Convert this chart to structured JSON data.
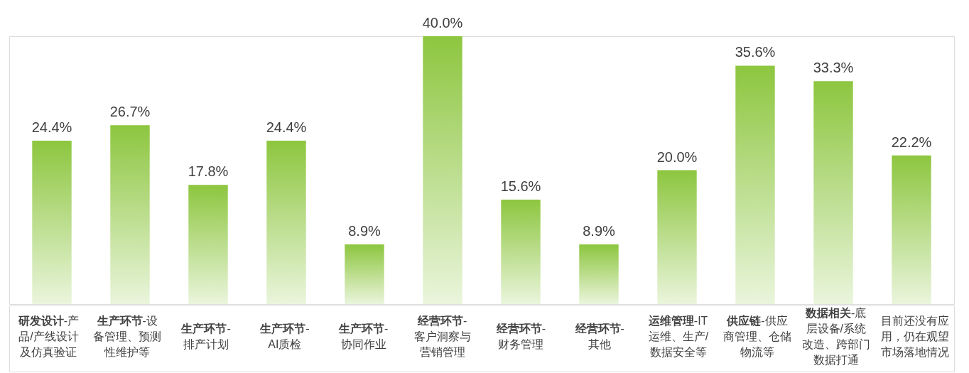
{
  "chart_data": {
    "type": "bar",
    "categories": [
      "研发设计-产品/产线设计及仿真验证",
      "生产环节-设备管理、预测性维护等",
      "生产环节-排产计划",
      "生产环节-AI质检",
      "生产环节-协同作业",
      "经营环节-客户洞察与营销管理",
      "经营环节-财务管理",
      "经营环节-其他",
      "运维管理-IT运维、生产/数据安全等",
      "供应链-供应商管理、仓储物流等",
      "数据相关-底层设备/系统改造、跨部门数据打通",
      "目前还没有应用，仍在观望市场落地情况"
    ],
    "values": [
      24.4,
      26.7,
      17.8,
      24.4,
      8.9,
      40.0,
      15.6,
      8.9,
      20.0,
      35.6,
      33.3,
      22.2
    ],
    "value_labels": [
      "24.4%",
      "26.7%",
      "17.8%",
      "24.4%",
      "8.9%",
      "40.0%",
      "15.6%",
      "8.9%",
      "20.0%",
      "35.6%",
      "33.3%",
      "22.2%"
    ],
    "color": "#8dc63f"
  }
}
